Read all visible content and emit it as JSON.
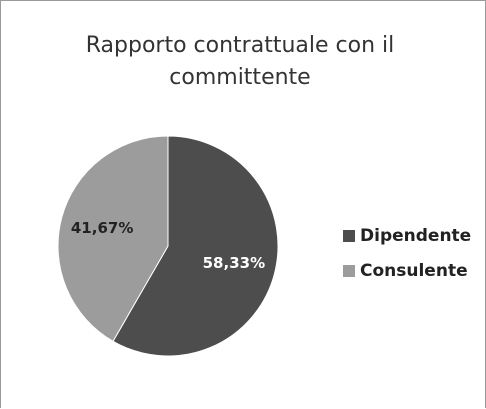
{
  "chart_data": {
    "type": "pie",
    "title": "Rapporto contrattuale con il committente",
    "categories": [
      "Dipendente",
      "Consulente"
    ],
    "values": [
      58.33,
      41.67
    ],
    "value_labels": [
      "58,33%",
      "41,67%"
    ],
    "colors": [
      "#4d4d4d",
      "#9c9c9c"
    ],
    "legend": "right"
  }
}
